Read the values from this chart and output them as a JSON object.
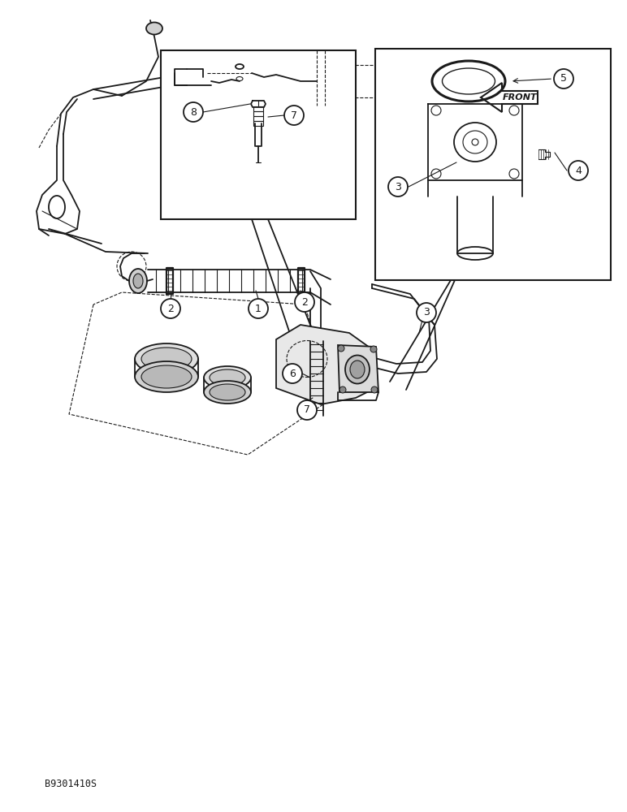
{
  "bg_color": "#ffffff",
  "line_color": "#1a1a1a",
  "fig_width": 7.72,
  "fig_height": 10.0,
  "dpi": 100,
  "watermark": "B9301410S",
  "front_label": "FRONT"
}
